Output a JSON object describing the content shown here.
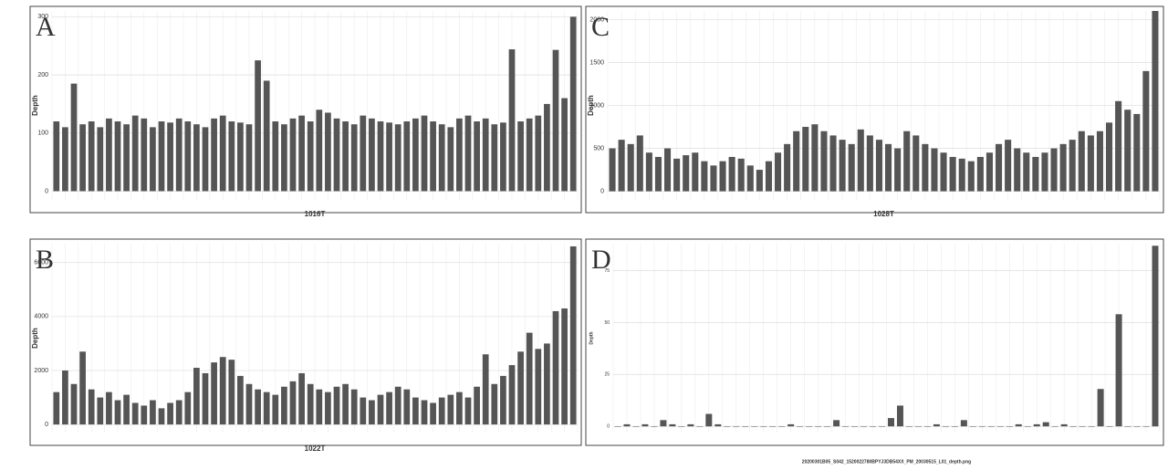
{
  "chart_data": [
    {
      "type": "bar",
      "panel": "A",
      "xlabel": "1016T",
      "ylabel": "Depth",
      "color": "#555555",
      "grid": true,
      "ylim": [
        -15,
        310
      ],
      "yticks": [
        0,
        100,
        200,
        300
      ],
      "values": [
        120,
        110,
        185,
        115,
        120,
        110,
        125,
        120,
        115,
        130,
        125,
        110,
        120,
        118,
        125,
        120,
        115,
        110,
        125,
        130,
        120,
        118,
        115,
        225,
        190,
        120,
        115,
        125,
        130,
        120,
        140,
        135,
        125,
        120,
        115,
        130,
        125,
        120,
        118,
        115,
        120,
        125,
        130,
        120,
        115,
        110,
        125,
        130,
        120,
        125,
        115,
        118,
        244,
        120,
        125,
        130,
        150,
        243,
        160,
        300
      ]
    },
    {
      "type": "bar",
      "panel": "B",
      "xlabel": "1022T",
      "ylabel": "Depth",
      "color": "#555555",
      "grid": true,
      "ylim": [
        -300,
        6700
      ],
      "yticks": [
        0,
        2000,
        4000,
        6000
      ],
      "values": [
        1200,
        2000,
        1500,
        2700,
        1300,
        1000,
        1200,
        900,
        1100,
        800,
        700,
        900,
        600,
        800,
        900,
        1200,
        2100,
        1900,
        2300,
        2500,
        2400,
        1800,
        1500,
        1300,
        1200,
        1100,
        1400,
        1600,
        1900,
        1500,
        1300,
        1200,
        1400,
        1500,
        1300,
        1000,
        900,
        1100,
        1200,
        1400,
        1300,
        1000,
        900,
        800,
        1000,
        1100,
        1200,
        1000,
        1400,
        2600,
        1500,
        1800,
        2200,
        2700,
        3400,
        2800,
        3000,
        4200,
        4300,
        6600
      ]
    },
    {
      "type": "bar",
      "panel": "C",
      "xlabel": "1028T",
      "ylabel": "Depth",
      "color": "#555555",
      "grid": true,
      "ylim": [
        -100,
        2100
      ],
      "yticks": [
        0,
        500,
        1000,
        1500,
        2000
      ],
      "values": [
        500,
        600,
        550,
        650,
        450,
        400,
        500,
        380,
        420,
        450,
        350,
        300,
        350,
        400,
        380,
        300,
        250,
        350,
        450,
        550,
        700,
        750,
        780,
        700,
        650,
        600,
        550,
        720,
        650,
        600,
        550,
        500,
        700,
        650,
        550,
        500,
        450,
        400,
        380,
        350,
        400,
        450,
        550,
        600,
        500,
        450,
        400,
        450,
        500,
        550,
        600,
        700,
        650,
        700,
        800,
        1050,
        950,
        900,
        1400,
        2100
      ]
    },
    {
      "type": "bar",
      "panel": "D",
      "xlabel": "20200301B05_S042_1520022780BPYJ3DB54XX_PM_20030515_L01_depth.png",
      "ylabel": "Depth",
      "color": "#555555",
      "grid": true,
      "ylim": [
        -3,
        88
      ],
      "yticks": [
        0,
        25,
        50,
        75
      ],
      "values": [
        0,
        1,
        0,
        1,
        0,
        3,
        1,
        0,
        1,
        0,
        6,
        1,
        0,
        0,
        0,
        0,
        0,
        0,
        0,
        1,
        0,
        0,
        0,
        0,
        3,
        0,
        0,
        0,
        0,
        0,
        4,
        10,
        0,
        0,
        0,
        1,
        0,
        0,
        3,
        0,
        0,
        0,
        0,
        0,
        1,
        0,
        1,
        2,
        0,
        1,
        0,
        0,
        0,
        18,
        0,
        54,
        0,
        0,
        0,
        87
      ]
    }
  ]
}
